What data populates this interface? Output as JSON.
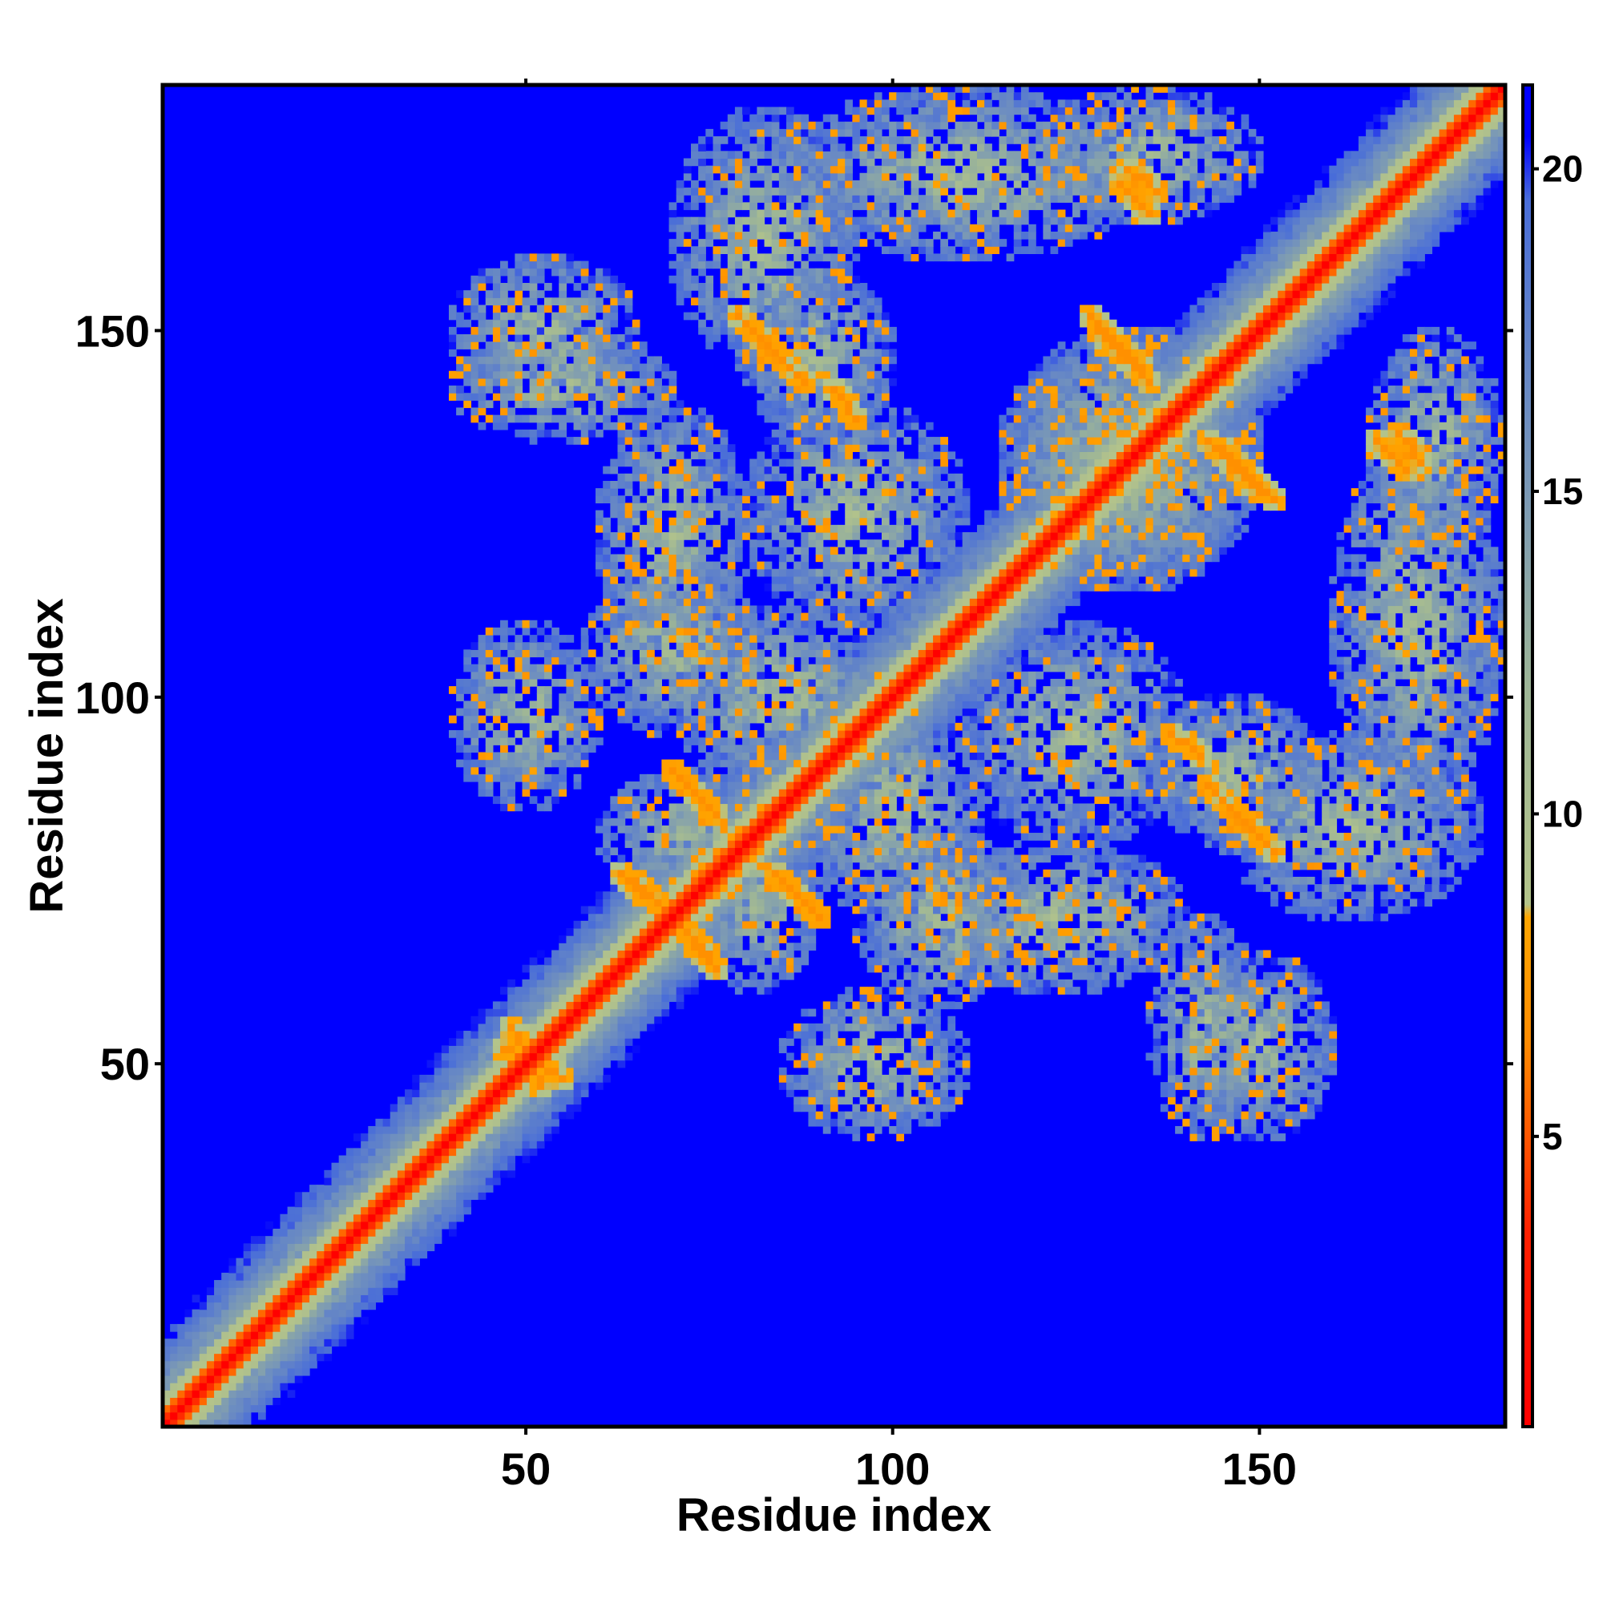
{
  "chart_data": {
    "type": "heatmap",
    "title": "",
    "xlabel": "Residue index",
    "ylabel": "Residue index",
    "xlim": [
      0.5,
      183.5
    ],
    "ylim": [
      0.5,
      183.5
    ],
    "x_ticks": [
      50,
      100,
      150
    ],
    "y_ticks": [
      50,
      100,
      150
    ],
    "x_tick_labels": [
      "50",
      "100",
      "150"
    ],
    "y_tick_labels": [
      "50",
      "100",
      "150"
    ],
    "n_residues": 183,
    "grid": false,
    "colorbar": {
      "placement": "right",
      "range": [
        0.5,
        21.3
      ],
      "ticks": [
        5,
        10,
        15,
        20
      ],
      "tick_labels": [
        "5",
        "10",
        "15",
        "20"
      ],
      "stops": [
        {
          "value": 0.5,
          "color": "#ff0000"
        },
        {
          "value": 3.5,
          "color": "#ff2000"
        },
        {
          "value": 6.5,
          "color": "#ff8c00"
        },
        {
          "value": 8.4,
          "color": "#ffa500"
        },
        {
          "value": 8.6,
          "color": "#b4c48a"
        },
        {
          "value": 12.0,
          "color": "#9db597"
        },
        {
          "value": 16.0,
          "color": "#6f8fbf"
        },
        {
          "value": 19.5,
          "color": "#4a6ed8"
        },
        {
          "value": 20.5,
          "color": "#0000ff"
        },
        {
          "value": 21.3,
          "color": "#0000ff"
        }
      ]
    },
    "background_color": "#0000ff",
    "value_beyond_contact": 21.3,
    "contact_regions": [
      {
        "type": "diagonal",
        "from": 1,
        "to": 183
      },
      {
        "type": "block",
        "x": [
          60,
          85
        ],
        "y": [
          73,
          90
        ]
      },
      {
        "type": "block",
        "x": [
          88,
          112
        ],
        "y": [
          70,
          100
        ]
      },
      {
        "type": "block",
        "x": [
          58,
          82
        ],
        "y": [
          95,
          118
        ]
      },
      {
        "type": "block",
        "x": [
          105,
          140
        ],
        "y": [
          60,
          80
        ]
      },
      {
        "type": "block",
        "x": [
          135,
          158
        ],
        "y": [
          80,
          100
        ]
      },
      {
        "type": "block",
        "x": [
          80,
          110
        ],
        "y": [
          110,
          140
        ]
      },
      {
        "type": "block",
        "x": [
          115,
          150
        ],
        "y": [
          115,
          150
        ]
      },
      {
        "type": "block",
        "x": [
          40,
          70
        ],
        "y": [
          135,
          150
        ]
      },
      {
        "type": "block",
        "x": [
          70,
          95
        ],
        "y": [
          145,
          180
        ]
      },
      {
        "type": "block",
        "x": [
          120,
          150
        ],
        "y": [
          165,
          183
        ]
      },
      {
        "type": "block",
        "x": [
          160,
          183
        ],
        "y": [
          85,
          135
        ]
      },
      {
        "type": "block",
        "x": [
          140,
          160
        ],
        "y": [
          40,
          65
        ]
      },
      {
        "type": "block",
        "x": [
          85,
          110
        ],
        "y": [
          40,
          60
        ]
      },
      {
        "type": "contact",
        "from": [
          68,
          72
        ],
        "to": [
          75,
          65
        ]
      },
      {
        "type": "contact",
        "from": [
          63,
          76
        ],
        "to": [
          70,
          70
        ]
      },
      {
        "type": "contact",
        "from": [
          70,
          90
        ],
        "to": [
          76,
          84
        ]
      },
      {
        "type": "contact",
        "from": [
          85,
          75
        ],
        "to": [
          90,
          70
        ]
      },
      {
        "type": "contact",
        "from": [
          79,
          152
        ],
        "to": [
          88,
          143
        ]
      },
      {
        "type": "contact",
        "from": [
          127,
          152
        ],
        "to": [
          134,
          145
        ]
      },
      {
        "type": "contact",
        "from": [
          143,
          135
        ],
        "to": [
          150,
          128
        ]
      },
      {
        "type": "contact",
        "from": [
          143,
          88
        ],
        "to": [
          150,
          81
        ]
      },
      {
        "type": "contact",
        "from": [
          131,
          170
        ],
        "to": [
          135,
          166
        ]
      },
      {
        "type": "contact",
        "from": [
          169,
          136
        ],
        "to": [
          172,
          132
        ]
      },
      {
        "type": "contact",
        "from": [
          47,
          52
        ],
        "to": [
          55,
          48
        ]
      },
      {
        "type": "contact",
        "from": [
          92,
          142
        ],
        "to": [
          95,
          138
        ]
      }
    ]
  }
}
